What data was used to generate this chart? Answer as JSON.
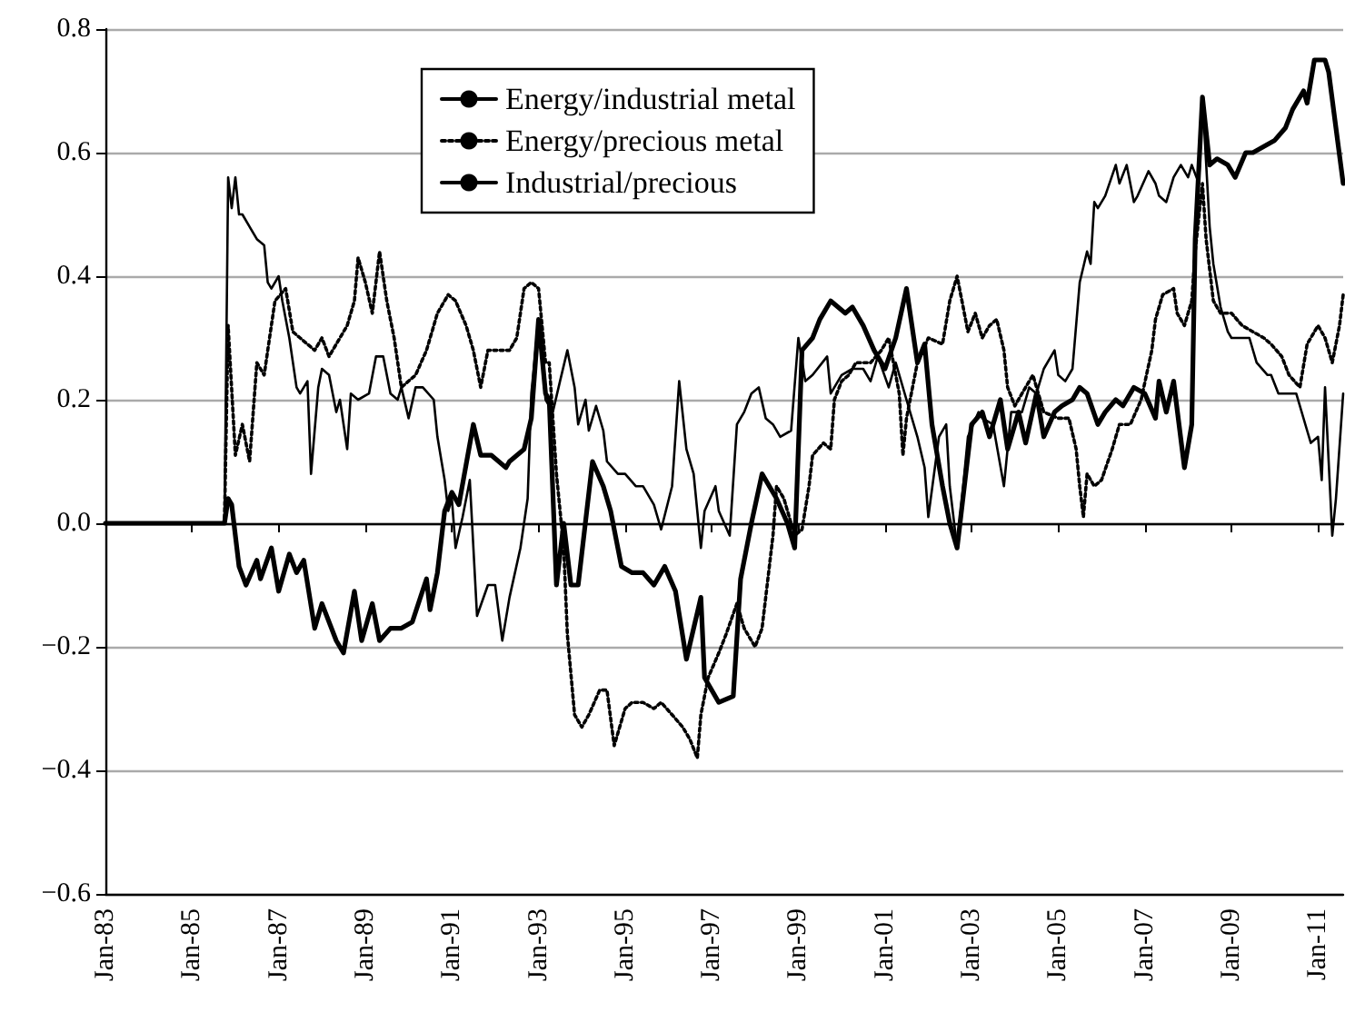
{
  "chart_data": {
    "type": "line",
    "legend": "top",
    "grid": "y",
    "marker": "none",
    "xlim": [
      "1983-01",
      "2011-08"
    ],
    "ylim": [
      -0.6,
      0.8
    ],
    "xticks": [
      {
        "value": "1983-01",
        "label": "Jan-83"
      },
      {
        "value": "1985-01",
        "label": "Jan-85"
      },
      {
        "value": "1987-01",
        "label": "Jan-87"
      },
      {
        "value": "1989-01",
        "label": "Jan-89"
      },
      {
        "value": "1991-01",
        "label": "Jan-91"
      },
      {
        "value": "1993-01",
        "label": "Jan-93"
      },
      {
        "value": "1995-01",
        "label": "Jan-95"
      },
      {
        "value": "1997-01",
        "label": "Jan-97"
      },
      {
        "value": "1999-01",
        "label": "Jan-99"
      },
      {
        "value": "2001-01",
        "label": "Jan-01"
      },
      {
        "value": "2003-01",
        "label": "Jan-03"
      },
      {
        "value": "2005-01",
        "label": "Jan-05"
      },
      {
        "value": "2007-01",
        "label": "Jan-07"
      },
      {
        "value": "2009-01",
        "label": "Jan-09"
      },
      {
        "value": "2011-01",
        "label": "Jan-11"
      }
    ],
    "yticks": [
      {
        "value": -0.6,
        "label": "−0.6"
      },
      {
        "value": -0.4,
        "label": "−0.4"
      },
      {
        "value": -0.2,
        "label": "−0.2"
      },
      {
        "value": 0,
        "label": "0.0"
      },
      0.2,
      0.4,
      0.6,
      0.8
    ],
    "series": [
      {
        "name": "Energy/industrial metal",
        "color": "#000000",
        "line_style": "solid",
        "x": [
          "1983-01",
          "1985-10",
          "1985-11",
          "1985-12",
          "1986-02",
          "1986-04",
          "1986-07",
          "1986-08",
          "1986-11",
          "1987-01",
          "1987-04",
          "1987-06",
          "1987-08",
          "1987-11",
          "1988-01",
          "1988-05",
          "1988-07",
          "1988-10",
          "1988-12",
          "1989-03",
          "1989-05",
          "1989-08",
          "1989-11",
          "1990-02",
          "1990-06",
          "1990-07",
          "1990-09",
          "1990-11",
          "1991-01",
          "1991-03",
          "1991-07",
          "1991-09",
          "1991-12",
          "1992-04",
          "1992-05",
          "1992-09",
          "1992-11",
          "1993-01",
          "1993-03",
          "1993-04",
          "1993-06",
          "1993-08",
          "1993-10",
          "1993-12",
          "1994-04",
          "1994-07",
          "1994-09",
          "1994-12",
          "1995-03",
          "1995-06",
          "1995-09",
          "1995-12",
          "1996-03",
          "1996-06",
          "1996-10",
          "1996-11",
          "1997-03",
          "1997-07",
          "1997-09",
          "1997-12",
          "1998-03",
          "1998-07",
          "1998-10",
          "1998-12",
          "1999-02",
          "1999-05",
          "1999-07",
          "1999-10",
          "2000-02",
          "2000-04",
          "2000-07",
          "2000-10",
          "2001-01",
          "2001-04",
          "2001-07",
          "2001-10",
          "2001-12",
          "2002-02",
          "2002-05",
          "2002-07",
          "2002-09",
          "2002-11",
          "2003-01",
          "2003-04",
          "2003-06",
          "2003-09",
          "2003-11",
          "2004-02",
          "2004-04",
          "2004-07",
          "2004-09",
          "2004-12",
          "2005-02",
          "2005-05",
          "2005-07",
          "2005-09",
          "2005-12",
          "2006-02",
          "2006-05",
          "2006-07",
          "2006-10",
          "2007-01",
          "2007-04",
          "2007-05",
          "2007-07",
          "2007-09",
          "2007-12",
          "2008-02",
          "2008-03",
          "2008-05",
          "2008-07",
          "2008-09",
          "2008-12",
          "2009-02",
          "2009-05",
          "2009-07",
          "2009-10",
          "2010-01",
          "2010-04",
          "2010-06",
          "2010-09",
          "2010-10",
          "2010-12",
          "2011-03",
          "2011-04",
          "2011-06",
          "2011-08"
        ],
        "values": [
          0,
          0,
          0.04,
          0.03,
          -0.07,
          -0.1,
          -0.06,
          -0.09,
          -0.04,
          -0.11,
          -0.05,
          -0.08,
          -0.06,
          -0.17,
          -0.13,
          -0.19,
          -0.21,
          -0.11,
          -0.19,
          -0.13,
          -0.19,
          -0.17,
          -0.17,
          -0.16,
          -0.09,
          -0.14,
          -0.08,
          0.02,
          0.05,
          0.03,
          0.16,
          0.11,
          0.11,
          0.09,
          0.1,
          0.12,
          0.17,
          0.33,
          0.21,
          0.2,
          -0.1,
          0,
          -0.1,
          -0.1,
          0.1,
          0.06,
          0.02,
          -0.07,
          -0.08,
          -0.08,
          -0.1,
          -0.07,
          -0.11,
          -0.22,
          -0.12,
          -0.25,
          -0.29,
          -0.28,
          -0.09,
          0,
          0.08,
          0.04,
          0,
          -0.04,
          0.28,
          0.3,
          0.33,
          0.36,
          0.34,
          0.35,
          0.32,
          0.28,
          0.25,
          0.3,
          0.38,
          0.26,
          0.29,
          0.16,
          0.06,
          0,
          -0.04,
          0.06,
          0.16,
          0.18,
          0.14,
          0.2,
          0.12,
          0.18,
          0.13,
          0.21,
          0.14,
          0.18,
          0.19,
          0.2,
          0.22,
          0.21,
          0.16,
          0.18,
          0.2,
          0.19,
          0.22,
          0.21,
          0.17,
          0.23,
          0.18,
          0.23,
          0.09,
          0.16,
          0.46,
          0.69,
          0.58,
          0.59,
          0.58,
          0.56,
          0.6,
          0.6,
          0.61,
          0.62,
          0.64,
          0.67,
          0.7,
          0.68,
          0.75,
          0.75,
          0.73,
          0.64,
          0.55
        ]
      },
      {
        "name": "Energy/precious metal",
        "color": "#000000",
        "line_style": "dotted",
        "x": [
          "1983-01",
          "1985-10",
          "1985-11",
          "1986-01",
          "1986-03",
          "1986-05",
          "1986-07",
          "1986-09",
          "1986-10",
          "1986-12",
          "1987-03",
          "1987-05",
          "1987-07",
          "1987-11",
          "1988-01",
          "1988-03",
          "1988-05",
          "1988-06",
          "1988-08",
          "1988-10",
          "1988-11",
          "1989-01",
          "1989-03",
          "1989-05",
          "1989-07",
          "1989-09",
          "1989-11",
          "1990-03",
          "1990-06",
          "1990-09",
          "1990-12",
          "1991-02",
          "1991-05",
          "1991-07",
          "1991-09",
          "1991-11",
          "1992-02",
          "1992-05",
          "1992-07",
          "1992-09",
          "1992-11",
          "1993-01",
          "1993-03",
          "1993-04",
          "1993-06",
          "1993-08",
          "1993-09",
          "1993-11",
          "1994-01",
          "1994-03",
          "1994-06",
          "1994-08",
          "1994-10",
          "1995-01",
          "1995-03",
          "1995-06",
          "1995-09",
          "1995-11",
          "1996-02",
          "1996-05",
          "1996-07",
          "1996-09",
          "1996-10",
          "1996-12",
          "1997-03",
          "1997-05",
          "1997-08",
          "1997-10",
          "1998-01",
          "1998-03",
          "1998-06",
          "1998-07",
          "1998-09",
          "1998-12",
          "1999-02",
          "1999-04",
          "1999-05",
          "1999-08",
          "1999-10",
          "1999-11",
          "2000-01",
          "2000-03",
          "2000-05",
          "2000-09",
          "2000-12",
          "2001-02",
          "2001-05",
          "2001-06",
          "2001-07",
          "2001-10",
          "2002-01",
          "2002-05",
          "2002-07",
          "2002-09",
          "2002-11",
          "2002-12",
          "2003-02",
          "2003-04",
          "2003-06",
          "2003-08",
          "2003-10",
          "2003-11",
          "2004-01",
          "2004-03",
          "2004-06",
          "2004-09",
          "2005-01",
          "2005-04",
          "2005-06",
          "2005-07",
          "2005-08",
          "2005-09",
          "2005-11",
          "2006-01",
          "2006-04",
          "2006-06",
          "2006-09",
          "2006-12",
          "2007-03",
          "2007-04",
          "2007-06",
          "2007-09",
          "2007-10",
          "2007-12",
          "2008-02",
          "2008-03",
          "2008-05",
          "2008-06",
          "2008-08",
          "2008-10",
          "2009-01",
          "2009-04",
          "2009-07",
          "2009-10",
          "2009-12",
          "2010-03",
          "2010-05",
          "2010-08",
          "2010-10",
          "2011-01",
          "2011-03",
          "2011-05",
          "2011-07",
          "2011-08"
        ],
        "values": [
          0,
          0,
          0.32,
          0.11,
          0.16,
          0.1,
          0.26,
          0.24,
          0.28,
          0.36,
          0.38,
          0.31,
          0.3,
          0.28,
          0.3,
          0.27,
          0.29,
          0.3,
          0.32,
          0.36,
          0.43,
          0.39,
          0.34,
          0.44,
          0.36,
          0.3,
          0.22,
          0.24,
          0.28,
          0.34,
          0.37,
          0.36,
          0.32,
          0.28,
          0.22,
          0.28,
          0.28,
          0.28,
          0.3,
          0.38,
          0.39,
          0.38,
          0.26,
          0.26,
          0.08,
          -0.04,
          -0.18,
          -0.31,
          -0.33,
          -0.31,
          -0.27,
          -0.27,
          -0.36,
          -0.3,
          -0.29,
          -0.29,
          -0.3,
          -0.29,
          -0.31,
          -0.33,
          -0.35,
          -0.38,
          -0.31,
          -0.25,
          -0.21,
          -0.18,
          -0.13,
          -0.17,
          -0.2,
          -0.17,
          -0.02,
          0.06,
          0.04,
          -0.02,
          -0.01,
          0.06,
          0.11,
          0.13,
          0.12,
          0.2,
          0.23,
          0.24,
          0.26,
          0.26,
          0.28,
          0.3,
          0.21,
          0.11,
          0.17,
          0.26,
          0.3,
          0.29,
          0.36,
          0.4,
          0.34,
          0.31,
          0.34,
          0.3,
          0.32,
          0.33,
          0.28,
          0.22,
          0.19,
          0.21,
          0.24,
          0.18,
          0.17,
          0.17,
          0.12,
          0.06,
          0.01,
          0.08,
          0.06,
          0.07,
          0.12,
          0.16,
          0.16,
          0.2,
          0.28,
          0.33,
          0.37,
          0.38,
          0.34,
          0.32,
          0.36,
          0.44,
          0.55,
          0.46,
          0.36,
          0.34,
          0.34,
          0.32,
          0.31,
          0.3,
          0.29,
          0.27,
          0.24,
          0.22,
          0.29,
          0.32,
          0.3,
          0.26,
          0.32,
          0.37
        ]
      },
      {
        "name": "Industrial/precious",
        "color": "#000000",
        "line_style": "solid",
        "x": [
          "1983-01",
          "1985-10",
          "1985-11",
          "1985-12",
          "1986-01",
          "1986-02",
          "1986-03",
          "1986-05",
          "1986-07",
          "1986-09",
          "1986-10",
          "1986-11",
          "1987-01",
          "1987-02",
          "1987-04",
          "1987-06",
          "1987-07",
          "1987-09",
          "1987-10",
          "1987-12",
          "1988-01",
          "1988-03",
          "1988-05",
          "1988-06",
          "1988-08",
          "1988-09",
          "1988-11",
          "1989-02",
          "1989-04",
          "1989-06",
          "1989-08",
          "1989-10",
          "1989-11",
          "1990-01",
          "1990-03",
          "1990-05",
          "1990-08",
          "1990-09",
          "1990-11",
          "1990-12",
          "1991-01",
          "1991-02",
          "1991-04",
          "1991-06",
          "1991-08",
          "1991-11",
          "1992-01",
          "1992-03",
          "1992-05",
          "1992-08",
          "1992-10",
          "1992-11",
          "1993-01",
          "1993-03",
          "1993-05",
          "1993-07",
          "1993-09",
          "1993-11",
          "1993-12",
          "1994-02",
          "1994-03",
          "1994-05",
          "1994-07",
          "1994-08",
          "1994-11",
          "1995-01",
          "1995-04",
          "1995-06",
          "1995-09",
          "1995-11",
          "1996-02",
          "1996-04",
          "1996-06",
          "1996-08",
          "1996-10",
          "1996-11",
          "1997-02",
          "1997-03",
          "1997-06",
          "1997-08",
          "1997-10",
          "1997-12",
          "1998-02",
          "1998-04",
          "1998-06",
          "1998-08",
          "1998-11",
          "1999-01",
          "1999-03",
          "1999-05",
          "1999-09",
          "1999-10",
          "2000-01",
          "2000-04",
          "2000-07",
          "2000-09",
          "2000-11",
          "2001-02",
          "2001-04",
          "2001-07",
          "2001-10",
          "2001-12",
          "2002-01",
          "2002-04",
          "2002-06",
          "2002-07",
          "2002-09",
          "2002-11",
          "2002-12",
          "2003-03",
          "2003-04",
          "2003-07",
          "2003-10",
          "2003-12",
          "2004-03",
          "2004-05",
          "2004-07",
          "2004-09",
          "2004-12",
          "2005-01",
          "2005-03",
          "2005-05",
          "2005-07",
          "2005-09",
          "2005-10",
          "2005-11",
          "2005-12",
          "2006-02",
          "2006-05",
          "2006-06",
          "2006-08",
          "2006-10",
          "2006-11",
          "2007-02",
          "2007-04",
          "2007-05",
          "2007-07",
          "2007-09",
          "2007-11",
          "2008-01",
          "2008-02",
          "2008-04",
          "2008-05",
          "2008-07",
          "2008-08",
          "2008-10",
          "2008-12",
          "2009-01",
          "2009-04",
          "2009-06",
          "2009-08",
          "2009-11",
          "2009-12",
          "2010-02",
          "2010-04",
          "2010-07",
          "2010-10",
          "2010-11",
          "2011-01",
          "2011-02",
          "2011-03",
          "2011-05",
          "2011-06",
          "2011-08"
        ],
        "values": [
          0,
          0,
          0.56,
          0.51,
          0.56,
          0.5,
          0.5,
          0.48,
          0.46,
          0.45,
          0.39,
          0.38,
          0.4,
          0.36,
          0.3,
          0.22,
          0.21,
          0.23,
          0.08,
          0.22,
          0.25,
          0.24,
          0.18,
          0.2,
          0.12,
          0.21,
          0.2,
          0.21,
          0.27,
          0.27,
          0.21,
          0.2,
          0.22,
          0.17,
          0.22,
          0.22,
          0.2,
          0.14,
          0.07,
          0.02,
          0.04,
          -0.04,
          0.01,
          0.07,
          -0.15,
          -0.1,
          -0.1,
          -0.19,
          -0.12,
          -0.04,
          0.04,
          0.21,
          0.33,
          0.2,
          0.18,
          0.23,
          0.28,
          0.22,
          0.16,
          0.2,
          0.15,
          0.19,
          0.15,
          0.1,
          0.08,
          0.08,
          0.06,
          0.06,
          0.03,
          -0.01,
          0.06,
          0.23,
          0.12,
          0.08,
          -0.04,
          0.02,
          0.06,
          0.02,
          -0.02,
          0.16,
          0.18,
          0.21,
          0.22,
          0.17,
          0.16,
          0.14,
          0.15,
          0.3,
          0.23,
          0.24,
          0.27,
          0.21,
          0.24,
          0.25,
          0.25,
          0.23,
          0.27,
          0.22,
          0.26,
          0.2,
          0.14,
          0.09,
          0.01,
          0.14,
          0.16,
          0.06,
          -0.04,
          0.08,
          0.14,
          0.18,
          0.17,
          0.16,
          0.06,
          0.18,
          0.18,
          0.22,
          0.21,
          0.25,
          0.28,
          0.24,
          0.23,
          0.25,
          0.39,
          0.44,
          0.42,
          0.52,
          0.51,
          0.53,
          0.58,
          0.55,
          0.58,
          0.52,
          0.53,
          0.57,
          0.55,
          0.53,
          0.52,
          0.56,
          0.58,
          0.56,
          0.58,
          0.55,
          0.69,
          0.48,
          0.42,
          0.35,
          0.31,
          0.3,
          0.3,
          0.3,
          0.26,
          0.24,
          0.24,
          0.21,
          0.21,
          0.21,
          0.15,
          0.13,
          0.14,
          0.07,
          0.22,
          -0.02,
          0.04,
          0.21
        ]
      }
    ]
  }
}
